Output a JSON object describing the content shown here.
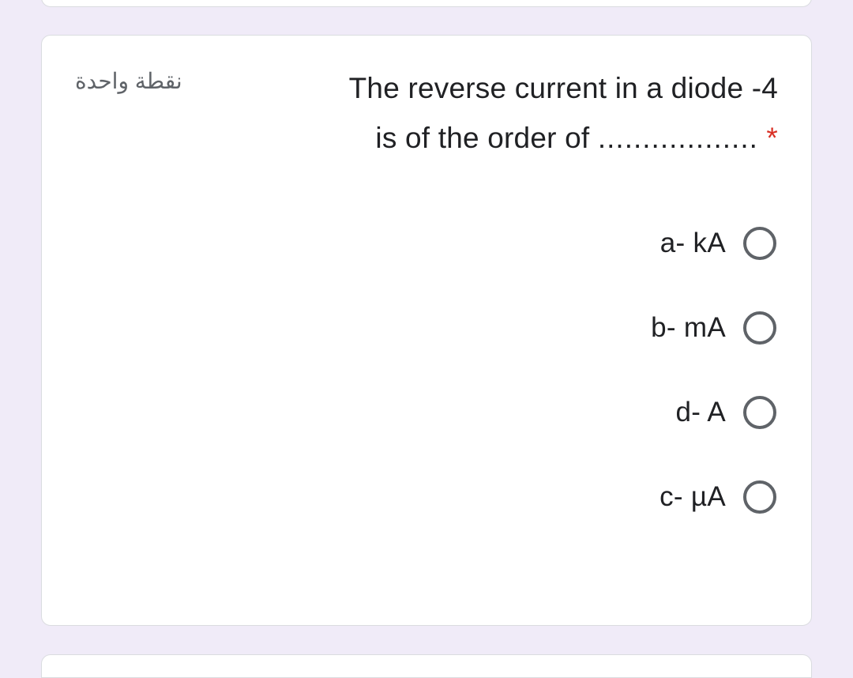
{
  "colors": {
    "page_bg": "#f0ebf8",
    "card_bg": "#ffffff",
    "card_border": "#dadce0",
    "text_primary": "#202124",
    "text_secondary": "#5f6368",
    "required": "#d93025",
    "radio_border": "#5f6368"
  },
  "question": {
    "points_label": "نقطة واحدة",
    "line1": "The reverse current in a diode -4",
    "line2_dots": "..................",
    "line2_text": " is of the order of",
    "required_mark": "*"
  },
  "options": [
    {
      "label": "a- kA"
    },
    {
      "label": "b- mA"
    },
    {
      "label": "d- A"
    },
    {
      "label": "c- µA"
    }
  ]
}
